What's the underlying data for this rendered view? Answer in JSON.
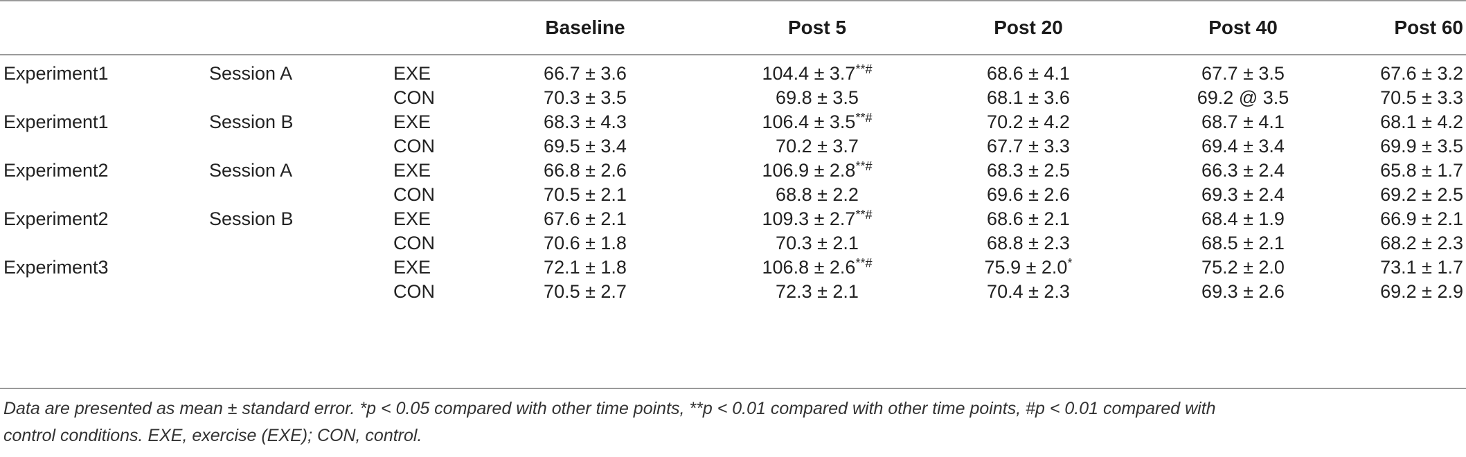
{
  "header": {
    "baseline": "Baseline",
    "post5": "Post 5",
    "post20": "Post 20",
    "post40": "Post 40",
    "post60": "Post 60"
  },
  "rows": [
    {
      "experiment": "Experiment1",
      "session": "Session A",
      "condition": "EXE",
      "baseline": "66.7 ± 3.6",
      "post5": "104.4 ± 3.7",
      "post5_mark": "**#",
      "post20": "68.6 ± 4.1",
      "post20_mark": "",
      "post40": "67.7 ± 3.5",
      "post60": "67.6 ± 3.2"
    },
    {
      "experiment": "",
      "session": "",
      "condition": "CON",
      "baseline": "70.3 ± 3.5",
      "post5": "69.8 ± 3.5",
      "post5_mark": "",
      "post20": "68.1 ± 3.6",
      "post20_mark": "",
      "post40": "69.2 @ 3.5",
      "post60": "70.5 ± 3.3"
    },
    {
      "experiment": "Experiment1",
      "session": "Session B",
      "condition": "EXE",
      "baseline": "68.3 ± 4.3",
      "post5": "106.4 ± 3.5",
      "post5_mark": "**#",
      "post20": "70.2 ± 4.2",
      "post20_mark": "",
      "post40": "68.7 ± 4.1",
      "post60": "68.1 ± 4.2"
    },
    {
      "experiment": "",
      "session": "",
      "condition": "CON",
      "baseline": "69.5 ± 3.4",
      "post5": "70.2 ± 3.7",
      "post5_mark": "",
      "post20": "67.7 ± 3.3",
      "post20_mark": "",
      "post40": "69.4 ± 3.4",
      "post60": "69.9 ± 3.5"
    },
    {
      "experiment": "Experiment2",
      "session": "Session A",
      "condition": "EXE",
      "baseline": "66.8 ± 2.6",
      "post5": "106.9 ± 2.8",
      "post5_mark": "**#",
      "post20": "68.3 ± 2.5",
      "post20_mark": "",
      "post40": "66.3 ± 2.4",
      "post60": "65.8 ± 1.7"
    },
    {
      "experiment": "",
      "session": "",
      "condition": "CON",
      "baseline": "70.5 ± 2.1",
      "post5": "68.8 ± 2.2",
      "post5_mark": "",
      "post20": "69.6 ± 2.6",
      "post20_mark": "",
      "post40": "69.3 ± 2.4",
      "post60": "69.2 ± 2.5"
    },
    {
      "experiment": "Experiment2",
      "session": "Session B",
      "condition": "EXE",
      "baseline": "67.6 ± 2.1",
      "post5": "109.3 ± 2.7",
      "post5_mark": "**#",
      "post20": "68.6 ± 2.1",
      "post20_mark": "",
      "post40": "68.4 ± 1.9",
      "post60": "66.9 ± 2.1"
    },
    {
      "experiment": "",
      "session": "",
      "condition": "CON",
      "baseline": "70.6 ± 1.8",
      "post5": "70.3 ± 2.1",
      "post5_mark": "",
      "post20": "68.8 ± 2.3",
      "post20_mark": "",
      "post40": "68.5 ± 2.1",
      "post60": "68.2 ± 2.3"
    },
    {
      "experiment": "Experiment3",
      "session": "",
      "condition": "EXE",
      "baseline": "72.1 ± 1.8",
      "post5": "106.8 ± 2.6",
      "post5_mark": "**#",
      "post20": "75.9 ± 2.0",
      "post20_mark": "*",
      "post40": "75.2 ± 2.0",
      "post60": "73.1 ± 1.7"
    },
    {
      "experiment": "",
      "session": "",
      "condition": "CON",
      "baseline": "70.5 ± 2.7",
      "post5": "72.3 ± 2.1",
      "post5_mark": "",
      "post20": "70.4 ± 2.3",
      "post20_mark": "",
      "post40": "69.3 ± 2.6",
      "post60": "69.2 ± 2.9"
    }
  ],
  "footnote": {
    "line1": "Data are presented as mean ± standard error. *p < 0.05 compared with other time points, **p < 0.01 compared with other time points, #p < 0.01 compared with",
    "line2": "control conditions. EXE, exercise (EXE); CON, control."
  }
}
